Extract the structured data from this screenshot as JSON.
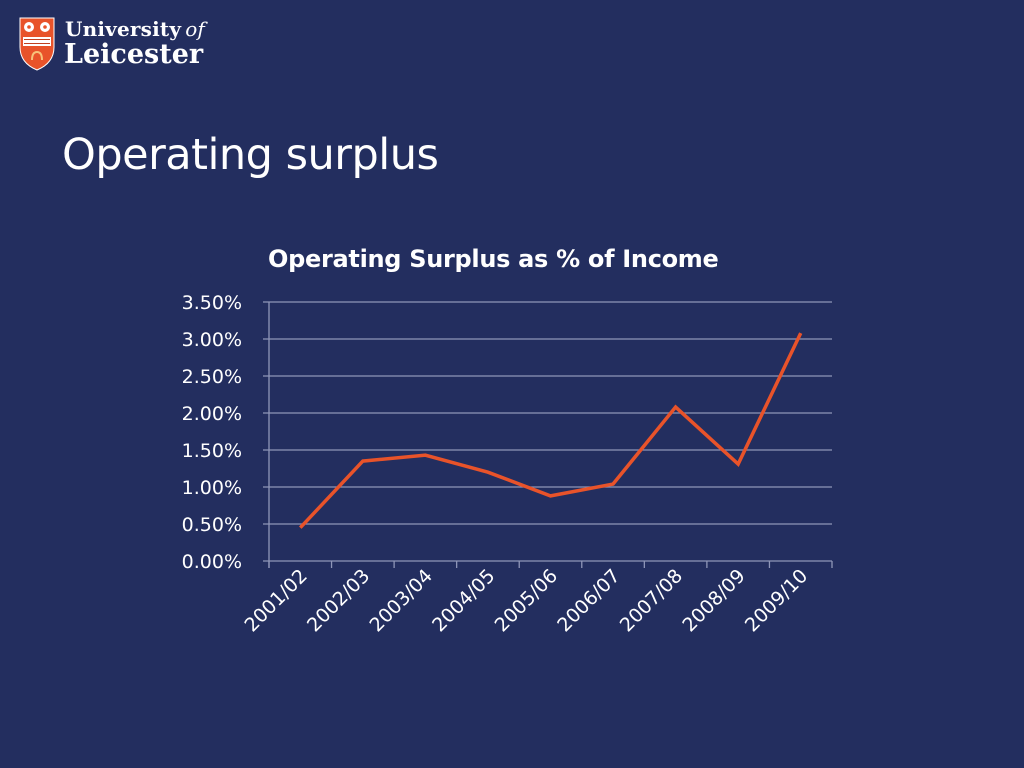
{
  "logo": {
    "line1": "University",
    "line1_italic": "of",
    "line2": "Leicester",
    "shield_color": "#e8532a",
    "icon": "university-crest-icon"
  },
  "slide": {
    "title": "Operating surplus"
  },
  "colors": {
    "background": "#232e5f",
    "line": "#e8532a",
    "gridline": "#8f96b8",
    "text": "#ffffff"
  },
  "chart_data": {
    "type": "line",
    "title": "Operating Surplus as % of Income",
    "xlabel": "",
    "ylabel": "",
    "categories": [
      "2001/02",
      "2002/03",
      "2003/04",
      "2004/05",
      "2005/06",
      "2006/07",
      "2007/08",
      "2008/09",
      "2009/10"
    ],
    "series": [
      {
        "name": "Operating Surplus as % of Income",
        "values": [
          0.45,
          1.35,
          1.43,
          1.2,
          0.88,
          1.04,
          2.08,
          1.31,
          3.08
        ],
        "unit": "%"
      }
    ],
    "ylim": [
      0,
      3.5
    ],
    "yticks": [
      "0.00%",
      "0.50%",
      "1.00%",
      "1.50%",
      "2.00%",
      "2.50%",
      "3.00%",
      "3.50%"
    ],
    "grid": true,
    "legend": "none",
    "x_label_rotation": -45
  }
}
